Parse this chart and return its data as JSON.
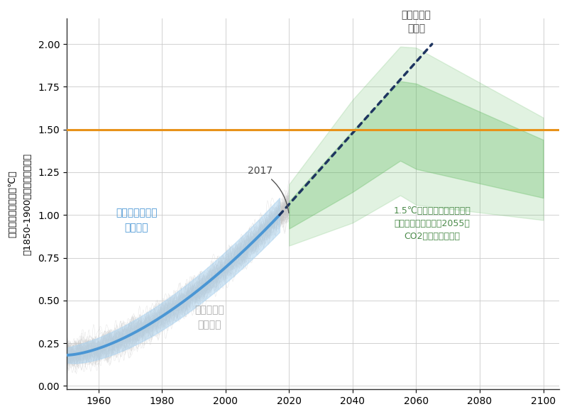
{
  "ylabel_line1": "世界平均気温変化（℃）",
  "ylabel_line2": "（1850-1900年の平均を基準）",
  "xlim": [
    1950,
    2105
  ],
  "ylim": [
    -0.02,
    2.15
  ],
  "yticks": [
    0.0,
    0.25,
    0.5,
    0.75,
    1.0,
    1.25,
    1.5,
    1.75,
    2.0
  ],
  "xticks": [
    1960,
    1980,
    2000,
    2020,
    2040,
    2060,
    2080,
    2100
  ],
  "target_line_y": 1.5,
  "target_line_color": "#E8921A",
  "bg_color": "#FFFFFF",
  "grid_color": "#CCCCCC",
  "blue_line_color": "#4A96D4",
  "blue_band_color": "#AED4F0",
  "dotted_line_color": "#1E3560",
  "green_color": "#5BB85A",
  "obs_color": "#C8C8C8",
  "anno_color": "#444444",
  "blue_anno_color": "#4A96D4",
  "green_anno_color": "#4A8A49"
}
